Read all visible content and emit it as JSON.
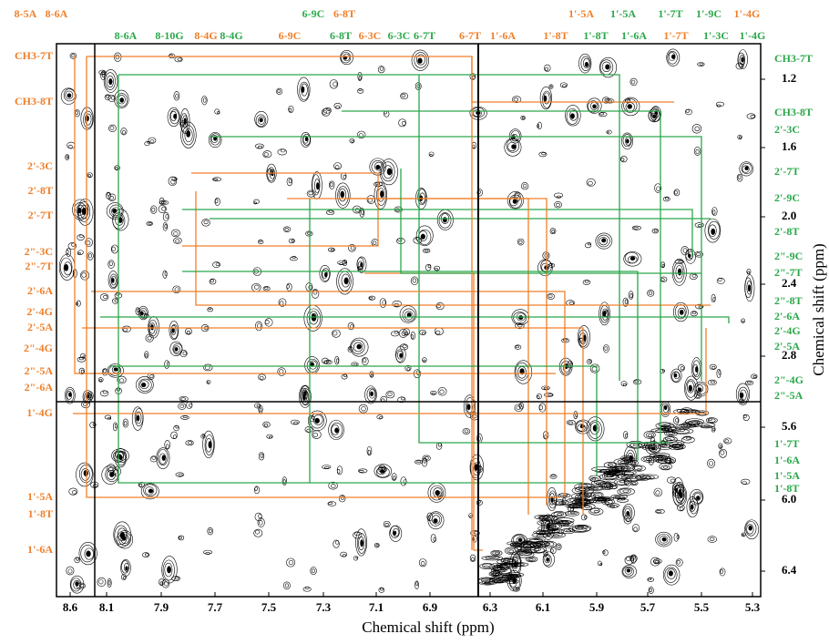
{
  "x_axis_title": "Chemical shift (ppm)",
  "y_axis_title": "Chemical shift (ppm)",
  "x_ticks": [
    "8.6",
    "8.1",
    "7.9",
    "7.7",
    "7.5",
    "7.3",
    "7.1",
    "6.9",
    "6.3",
    "6.1",
    "5.9",
    "5.7",
    "5.5",
    "5.3"
  ],
  "y_ticks": [
    "1.2",
    "1.6",
    "2.0",
    "2.4",
    "2.8",
    "5.6",
    "6.0",
    "6.4"
  ],
  "top_labels": [
    {
      "text": "8-5A",
      "color": "#f07f2a"
    },
    {
      "text": "8-6A",
      "color": "#f07f2a"
    },
    {
      "text": "8-6A",
      "color": "#2aa84a"
    },
    {
      "text": "8-10G",
      "color": "#2aa84a"
    },
    {
      "text": "8-4G",
      "color": "#f07f2a"
    },
    {
      "text": "8-4G",
      "color": "#2aa84a"
    },
    {
      "text": "6-9C",
      "color": "#2aa84a"
    },
    {
      "text": "6-8T",
      "color": "#f07f2a"
    },
    {
      "text": "6-9C",
      "color": "#f07f2a"
    },
    {
      "text": "6-8T",
      "color": "#2aa84a"
    },
    {
      "text": "6-3C",
      "color": "#f07f2a"
    },
    {
      "text": "6-3C",
      "color": "#2aa84a"
    },
    {
      "text": "6-7T",
      "color": "#2aa84a"
    },
    {
      "text": "6-7T",
      "color": "#f07f2a"
    },
    {
      "text": "1'-6A",
      "color": "#f07f2a"
    },
    {
      "text": "1'-5A",
      "color": "#f07f2a"
    },
    {
      "text": "1'-8T",
      "color": "#f07f2a"
    },
    {
      "text": "1'-5A",
      "color": "#2aa84a"
    },
    {
      "text": "1'-8T",
      "color": "#2aa84a"
    },
    {
      "text": "1'-6A",
      "color": "#2aa84a"
    },
    {
      "text": "1'-7T",
      "color": "#2aa84a"
    },
    {
      "text": "1'-7T",
      "color": "#f07f2a"
    },
    {
      "text": "1'-9C",
      "color": "#2aa84a"
    },
    {
      "text": "1'-3C",
      "color": "#2aa84a"
    },
    {
      "text": "1'-4G",
      "color": "#f07f2a"
    },
    {
      "text": "1'-4G",
      "color": "#2aa84a"
    }
  ],
  "left_labels": [
    "CH3-7T",
    "CH3-8T",
    "2'-3C",
    "2'-8T",
    "2'-7T",
    "2\"-3C",
    "2\"-7T",
    "2'-6A",
    "2'-4G",
    "2'-5A",
    "2\"-4G",
    "2\"-5A",
    "2\"-6A",
    "1'-4G",
    "1'-5A",
    "1'-8T",
    "1'-6A"
  ],
  "right_labels": [
    "CH3-7T",
    "CH3-8T",
    "2'-3C",
    "2'-7T",
    "2'-9C",
    "2'-8T",
    "2\"-9C",
    "2\"-7T",
    "2\"-8T",
    "2'-6A",
    "2'-4G",
    "2'-5A",
    "2\"-4G",
    "2\"-5A",
    "1'-7T",
    "1'-6A",
    "1'-5A",
    "1'-8T"
  ]
}
